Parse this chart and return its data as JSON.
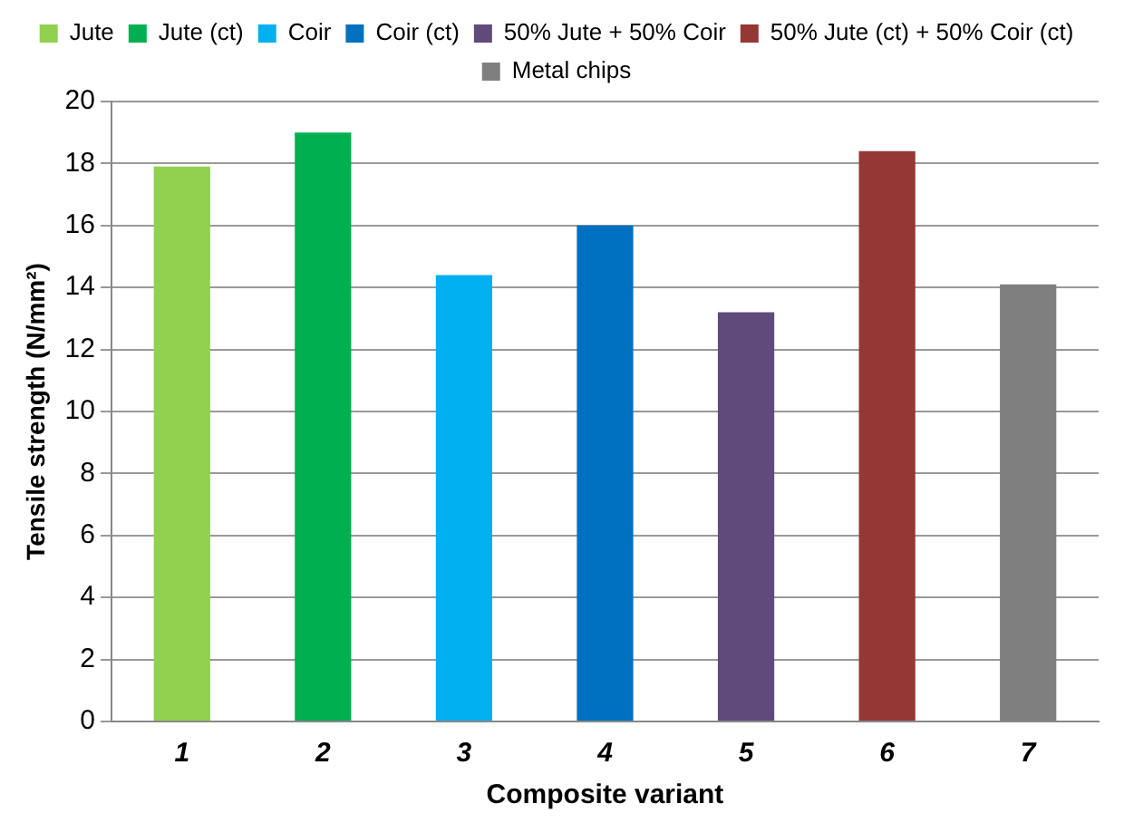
{
  "chart_data": {
    "type": "bar",
    "xlabel": "Composite variant",
    "ylabel": "Tensile strength (N/mm²)",
    "categories": [
      "1",
      "2",
      "3",
      "4",
      "5",
      "6",
      "7"
    ],
    "series": [
      {
        "name": "Jute",
        "color": "#92d050",
        "values": [
          17.9,
          null,
          null,
          null,
          null,
          null,
          null
        ]
      },
      {
        "name": "Jute (ct)",
        "color": "#00b050",
        "values": [
          null,
          19.0,
          null,
          null,
          null,
          null,
          null
        ]
      },
      {
        "name": "Coir",
        "color": "#00b0f0",
        "values": [
          null,
          null,
          14.4,
          null,
          null,
          null,
          null
        ]
      },
      {
        "name": "Coir (ct)",
        "color": "#0070c0",
        "values": [
          null,
          null,
          null,
          16.0,
          null,
          null,
          null
        ]
      },
      {
        "name": "50% Jute + 50% Coir",
        "color": "#604a7b",
        "values": [
          null,
          null,
          null,
          null,
          13.2,
          null,
          null
        ]
      },
      {
        "name": "50% Jute (ct) + 50% Coir (ct)",
        "color": "#953735",
        "values": [
          null,
          null,
          null,
          null,
          null,
          18.4,
          null
        ]
      },
      {
        "name": "Metal chips",
        "color": "#7f7f7f",
        "values": [
          null,
          null,
          null,
          null,
          null,
          null,
          14.1
        ]
      }
    ],
    "ylim": [
      0,
      20
    ],
    "yticks": [
      0,
      2,
      4,
      6,
      8,
      10,
      12,
      14,
      16,
      18,
      20
    ],
    "grid": "y",
    "legend": "top"
  }
}
